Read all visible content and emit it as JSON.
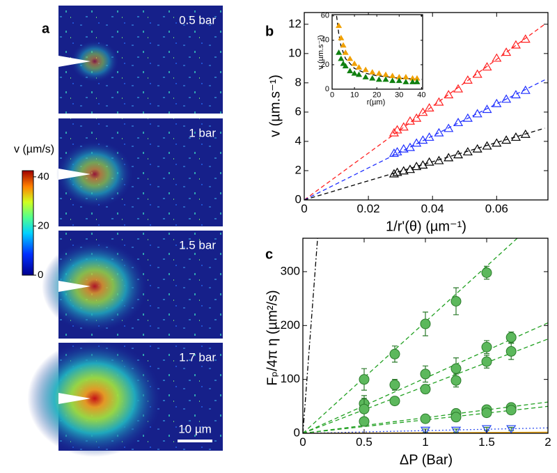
{
  "chart_data": [
    {
      "type": "image",
      "panel_label": "a",
      "frames": [
        "0.5 bar",
        "1 bar",
        "1.5 bar",
        "1.7 bar"
      ],
      "colorbar": {
        "label": "v (µm/s)",
        "lim": [
          0,
          42.5
        ],
        "ticks": [
          0,
          20,
          40
        ]
      },
      "scale_bar": "10 µm"
    },
    {
      "type": "scatter",
      "panel_label": "b",
      "x_label": "1/r'(θ) (µm⁻¹)",
      "y_label": "v (µm.s⁻¹)",
      "xlim": [
        0,
        0.076
      ],
      "xticks": [
        0,
        0.02,
        0.04,
        0.06
      ],
      "ylim": [
        0,
        12.8
      ],
      "yticks": [
        0,
        2,
        4,
        6,
        8,
        10,
        12
      ],
      "series": [
        {
          "color": "#ff2020",
          "marker": "triangle",
          "x": [
            0.028,
            0.029,
            0.031,
            0.033,
            0.035,
            0.037,
            0.039,
            0.042,
            0.045,
            0.048,
            0.051,
            0.054,
            0.057,
            0.06,
            0.063,
            0.066,
            0.069
          ],
          "values": [
            4.6,
            4.8,
            5.0,
            5.4,
            5.6,
            6.0,
            6.3,
            6.7,
            7.2,
            7.6,
            8.2,
            8.6,
            9.1,
            9.7,
            10.1,
            10.6,
            11.0
          ]
        },
        {
          "color": "#2030ff",
          "marker": "triangle",
          "x": [
            0.028,
            0.029,
            0.031,
            0.033,
            0.035,
            0.037,
            0.039,
            0.042,
            0.045,
            0.048,
            0.051,
            0.054,
            0.057,
            0.06,
            0.063,
            0.066,
            0.069
          ],
          "values": [
            3.2,
            3.3,
            3.5,
            3.6,
            3.9,
            4.1,
            4.3,
            4.6,
            4.9,
            5.3,
            5.6,
            5.9,
            6.2,
            6.6,
            6.9,
            7.2,
            7.5
          ]
        },
        {
          "color": "#000000",
          "marker": "triangle",
          "x": [
            0.028,
            0.029,
            0.031,
            0.033,
            0.035,
            0.037,
            0.039,
            0.042,
            0.045,
            0.048,
            0.051,
            0.054,
            0.057,
            0.06,
            0.063,
            0.066,
            0.069
          ],
          "values": [
            1.8,
            1.9,
            2.0,
            2.1,
            2.3,
            2.4,
            2.6,
            2.7,
            2.9,
            3.1,
            3.3,
            3.5,
            3.7,
            3.9,
            4.1,
            4.3,
            4.5
          ]
        }
      ],
      "fits": [
        {
          "color": "#ff2020",
          "dash": "dashed",
          "x": [
            0,
            0.075
          ],
          "values": [
            0,
            12
          ]
        },
        {
          "color": "#2030ff",
          "dash": "dashed",
          "x": [
            0,
            0.075
          ],
          "values": [
            0,
            8.2
          ]
        },
        {
          "color": "#000000",
          "dash": "dashed",
          "x": [
            0,
            0.075
          ],
          "values": [
            0,
            4.9
          ]
        }
      ]
    },
    {
      "type": "scatter",
      "x_label": "r(µm)",
      "y_label": "v (µm.s⁻¹)",
      "xlim": [
        0,
        40.5
      ],
      "xticks": [
        0,
        10,
        20,
        30,
        40
      ],
      "ylim": [
        0,
        61
      ],
      "yticks": [
        0,
        20,
        40,
        60
      ],
      "series": [
        {
          "color": "#f0a000",
          "marker": "triangle",
          "x": [
            3,
            4,
            5,
            6,
            8,
            10,
            12,
            15,
            18,
            21,
            24,
            27,
            30,
            33,
            36,
            38
          ],
          "values": [
            52,
            42,
            36,
            30,
            25,
            21,
            18,
            16,
            14,
            13,
            12,
            11,
            10,
            10,
            9,
            9
          ]
        },
        {
          "color": "#108010",
          "marker": "triangle",
          "x": [
            3,
            4,
            5,
            6,
            8,
            10,
            12,
            15,
            18,
            21,
            24,
            27,
            30,
            33,
            36,
            38
          ],
          "values": [
            30,
            25,
            21,
            19,
            15,
            13,
            12,
            10,
            9,
            8,
            8,
            7,
            7,
            6,
            6,
            6
          ]
        }
      ],
      "fits": [
        {
          "color": "#000000",
          "dash": "dashed",
          "x": [
            2,
            3,
            4,
            6,
            10,
            15,
            20,
            30,
            40
          ],
          "values": [
            60,
            45,
            35,
            25,
            17,
            13,
            11,
            9,
            8
          ]
        }
      ]
    },
    {
      "type": "scatter",
      "panel_label": "c",
      "x_label": "ΔP (Bar)",
      "y_label": "Fₚ/4π η (µm²/s)",
      "xlim": [
        0,
        2
      ],
      "xticks": [
        0,
        0.5,
        1,
        1.5,
        2
      ],
      "ylim": [
        0,
        362
      ],
      "yticks": [
        0,
        100,
        200,
        300
      ],
      "series": [
        {
          "color": "#5cb85c",
          "marker": "circle",
          "x": [
            0.5,
            0.75,
            1,
            1.25,
            1.5
          ],
          "values": [
            100,
            147,
            203,
            245,
            298
          ],
          "errors": [
            20,
            15,
            22,
            25,
            12
          ]
        },
        {
          "color": "#5cb85c",
          "marker": "circle",
          "x": [
            0.5,
            0.75,
            1,
            1.25,
            1.5,
            1.7
          ],
          "values": [
            55,
            90,
            110,
            120,
            160,
            178
          ],
          "errors": [
            15,
            10,
            15,
            20,
            12,
            10
          ]
        },
        {
          "color": "#5cb85c",
          "marker": "circle",
          "x": [
            0.5,
            0.75,
            1,
            1.25,
            1.5,
            1.7
          ],
          "values": [
            45,
            60,
            82,
            98,
            133,
            152
          ],
          "errors": [
            20,
            5,
            8,
            12,
            12,
            15
          ]
        },
        {
          "color": "#5cb85c",
          "marker": "circle",
          "x": [
            0.5,
            1,
            1.25,
            1.5,
            1.7
          ],
          "values": [
            22,
            27,
            37,
            44,
            48
          ],
          "errors": [
            5,
            5,
            6,
            5,
            6
          ]
        },
        {
          "color": "#5cb85c",
          "marker": "circle",
          "x": [
            1.25,
            1.5,
            1.7
          ],
          "values": [
            30,
            38,
            43
          ],
          "errors": [
            5,
            5,
            5
          ]
        },
        {
          "color": "#3050f0",
          "marker": "triangle-down",
          "x": [
            1,
            1.25,
            1.5,
            1.7
          ],
          "values": [
            5,
            5,
            8,
            8
          ],
          "errors": [
            3,
            3,
            3,
            3
          ]
        }
      ],
      "fits": [
        {
          "color": "#20a020",
          "dash": "dashed",
          "x": [
            0,
            1.75
          ],
          "values": [
            0,
            362
          ]
        },
        {
          "color": "#20a020",
          "dash": "dashed",
          "x": [
            0,
            2
          ],
          "values": [
            0,
            205
          ]
        },
        {
          "color": "#20a020",
          "dash": "dashed",
          "x": [
            0,
            2
          ],
          "values": [
            0,
            175
          ]
        },
        {
          "color": "#20a020",
          "dash": "dashed",
          "x": [
            0,
            2
          ],
          "values": [
            0,
            58
          ]
        },
        {
          "color": "#20a020",
          "dash": "dashed",
          "x": [
            0,
            2
          ],
          "values": [
            0,
            50
          ]
        },
        {
          "color": "#3050f0",
          "dash": "dotted",
          "x": [
            0,
            2
          ],
          "values": [
            0,
            10
          ]
        },
        {
          "color": "#f0a000",
          "dash": "solid",
          "x": [
            0,
            2
          ],
          "values": [
            0,
            2
          ]
        },
        {
          "color": "#000000",
          "dash": "dashdot",
          "x": [
            0,
            0.12
          ],
          "values": [
            0,
            362
          ]
        }
      ]
    }
  ]
}
